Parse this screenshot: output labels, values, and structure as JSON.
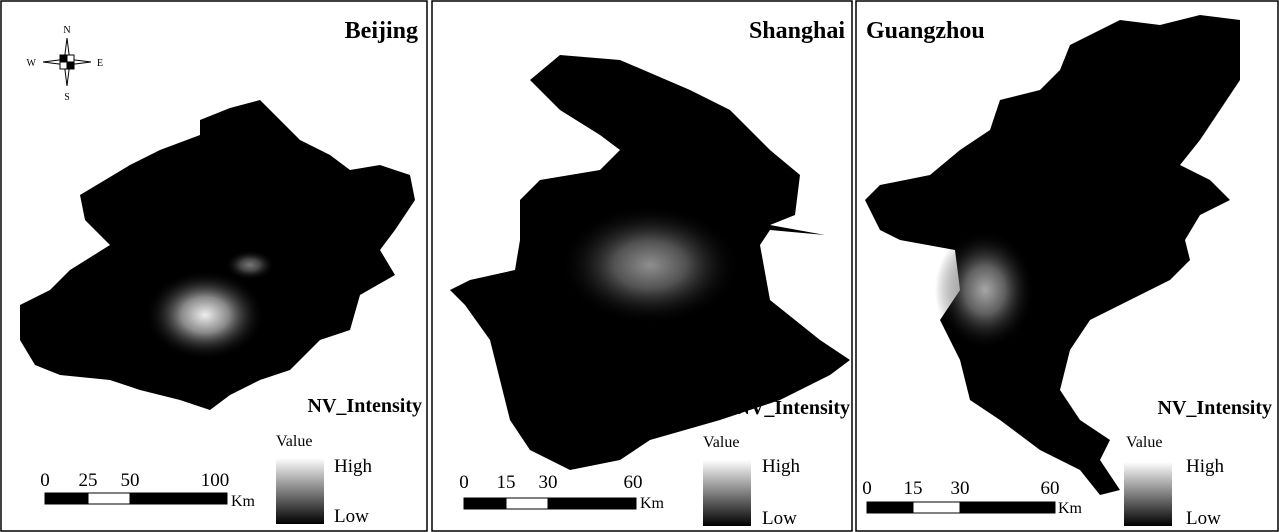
{
  "compass": [
    "N",
    "E",
    "S",
    "W"
  ],
  "panels": [
    {
      "city": "Beijing",
      "legend_title": "NV_Intensity",
      "value_label": "Value",
      "high": "High",
      "low": "Low",
      "scale_ticks": [
        "0",
        "25",
        "50",
        "100"
      ],
      "unit": "Km"
    },
    {
      "city": "Shanghai",
      "legend_title": "NV_Intensity",
      "value_label": "Value",
      "high": "High",
      "low": "Low",
      "scale_ticks": [
        "0",
        "15",
        "30",
        "60"
      ],
      "unit": "Km"
    },
    {
      "city": "Guangzhou",
      "legend_title": "NV_Intensity",
      "value_label": "Value",
      "high": "High",
      "low": "Low",
      "scale_ticks": [
        "0",
        "15",
        "30",
        "60"
      ],
      "unit": "Km"
    }
  ]
}
